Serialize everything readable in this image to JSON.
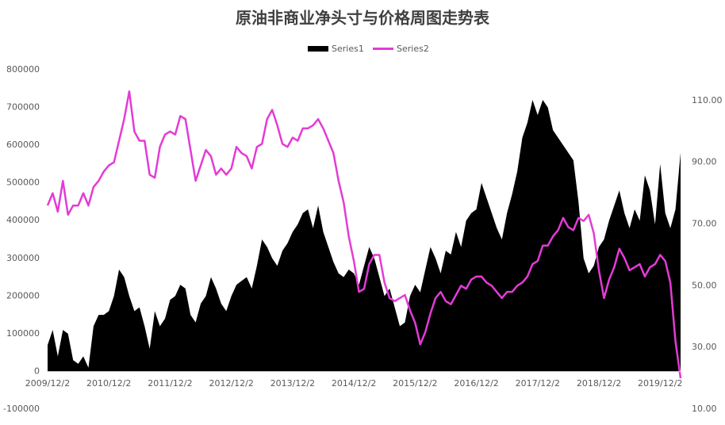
{
  "chart_data": {
    "type": "area-line",
    "title": "原油非商业净头寸与价格周图走势表",
    "categories": [
      "2009/12/2",
      null,
      null,
      null,
      null,
      null,
      null,
      null,
      null,
      null,
      null,
      null,
      "2010/12/2",
      null,
      null,
      null,
      null,
      null,
      null,
      null,
      null,
      null,
      null,
      null,
      "2011/12/2",
      null,
      null,
      null,
      null,
      null,
      null,
      null,
      null,
      null,
      null,
      null,
      "2012/12/2",
      null,
      null,
      null,
      null,
      null,
      null,
      null,
      null,
      null,
      null,
      null,
      "2013/12/2",
      null,
      null,
      null,
      null,
      null,
      null,
      null,
      null,
      null,
      null,
      null,
      "2014/12/2",
      null,
      null,
      null,
      null,
      null,
      null,
      null,
      null,
      null,
      null,
      null,
      "2015/12/2",
      null,
      null,
      null,
      null,
      null,
      null,
      null,
      null,
      null,
      null,
      null,
      "2016/12/2",
      null,
      null,
      null,
      null,
      null,
      null,
      null,
      null,
      null,
      null,
      null,
      "2017/12/2",
      null,
      null,
      null,
      null,
      null,
      null,
      null,
      null,
      null,
      null,
      null,
      "2018/12/2",
      null,
      null,
      null,
      null,
      null,
      null,
      null,
      null,
      null,
      null,
      null,
      "2019/12/2",
      null,
      null,
      null,
      null
    ],
    "series": [
      {
        "name": "Series1",
        "color": "#000000",
        "kind": "area",
        "values": [
          70000,
          110000,
          40000,
          110000,
          100000,
          30000,
          20000,
          40000,
          10000,
          120000,
          150000,
          150000,
          160000,
          200000,
          270000,
          250000,
          200000,
          160000,
          170000,
          120000,
          60000,
          160000,
          120000,
          140000,
          190000,
          200000,
          230000,
          220000,
          150000,
          130000,
          180000,
          200000,
          250000,
          220000,
          180000,
          160000,
          200000,
          230000,
          240000,
          250000,
          220000,
          280000,
          350000,
          330000,
          300000,
          280000,
          320000,
          340000,
          370000,
          390000,
          420000,
          430000,
          380000,
          440000,
          370000,
          330000,
          290000,
          260000,
          250000,
          270000,
          260000,
          230000,
          280000,
          330000,
          300000,
          250000,
          200000,
          220000,
          170000,
          120000,
          130000,
          200000,
          230000,
          210000,
          270000,
          330000,
          300000,
          260000,
          320000,
          310000,
          370000,
          330000,
          400000,
          420000,
          430000,
          500000,
          460000,
          420000,
          380000,
          350000,
          420000,
          470000,
          530000,
          620000,
          660000,
          720000,
          680000,
          720000,
          700000,
          640000,
          620000,
          600000,
          580000,
          560000,
          450000,
          300000,
          260000,
          280000,
          330000,
          350000,
          400000,
          440000,
          480000,
          420000,
          380000,
          430000,
          400000,
          520000,
          480000,
          390000,
          550000,
          420000,
          380000,
          430000,
          580000
        ]
      },
      {
        "name": "Series2",
        "color": "#e33bd6",
        "kind": "line",
        "axis": "y2",
        "values": [
          76,
          80,
          74,
          84,
          73,
          76,
          76,
          80,
          76,
          82,
          84,
          87,
          89,
          90,
          97,
          104,
          113,
          100,
          97,
          97,
          86,
          85,
          95,
          99,
          100,
          99,
          105,
          104,
          94,
          84,
          89,
          94,
          92,
          86,
          88,
          86,
          88,
          95,
          93,
          92,
          88,
          95,
          96,
          104,
          107,
          102,
          96,
          95,
          98,
          97,
          101,
          101,
          102,
          104,
          101,
          97,
          93,
          84,
          77,
          66,
          58,
          48,
          49,
          57,
          60,
          60,
          51,
          46,
          45,
          46,
          47,
          42,
          38,
          31,
          35,
          41,
          46,
          48,
          45,
          44,
          47,
          50,
          49,
          52,
          53,
          53,
          51,
          50,
          48,
          46,
          48,
          48,
          50,
          51,
          53,
          57,
          58,
          63,
          63,
          66,
          68,
          72,
          69,
          68,
          72,
          71,
          73,
          67,
          55,
          46,
          52,
          56,
          62,
          59,
          55,
          56,
          57,
          53,
          56,
          57,
          60,
          58,
          51,
          32,
          20
        ]
      }
    ],
    "ylim": [
      -100000,
      800000
    ],
    "yticks": [
      -100000,
      0,
      100000,
      200000,
      300000,
      400000,
      500000,
      600000,
      700000,
      800000
    ],
    "y2lim": [
      10,
      120
    ],
    "y2ticks": [
      {
        "value": 10,
        "label": "10.00"
      },
      {
        "value": 30,
        "label": "30.00"
      },
      {
        "value": 50,
        "label": "50.00"
      },
      {
        "value": 70,
        "label": "70.00"
      },
      {
        "value": 90,
        "label": "90.00"
      },
      {
        "value": 110,
        "label": "110.00"
      }
    ],
    "legend": "top"
  }
}
